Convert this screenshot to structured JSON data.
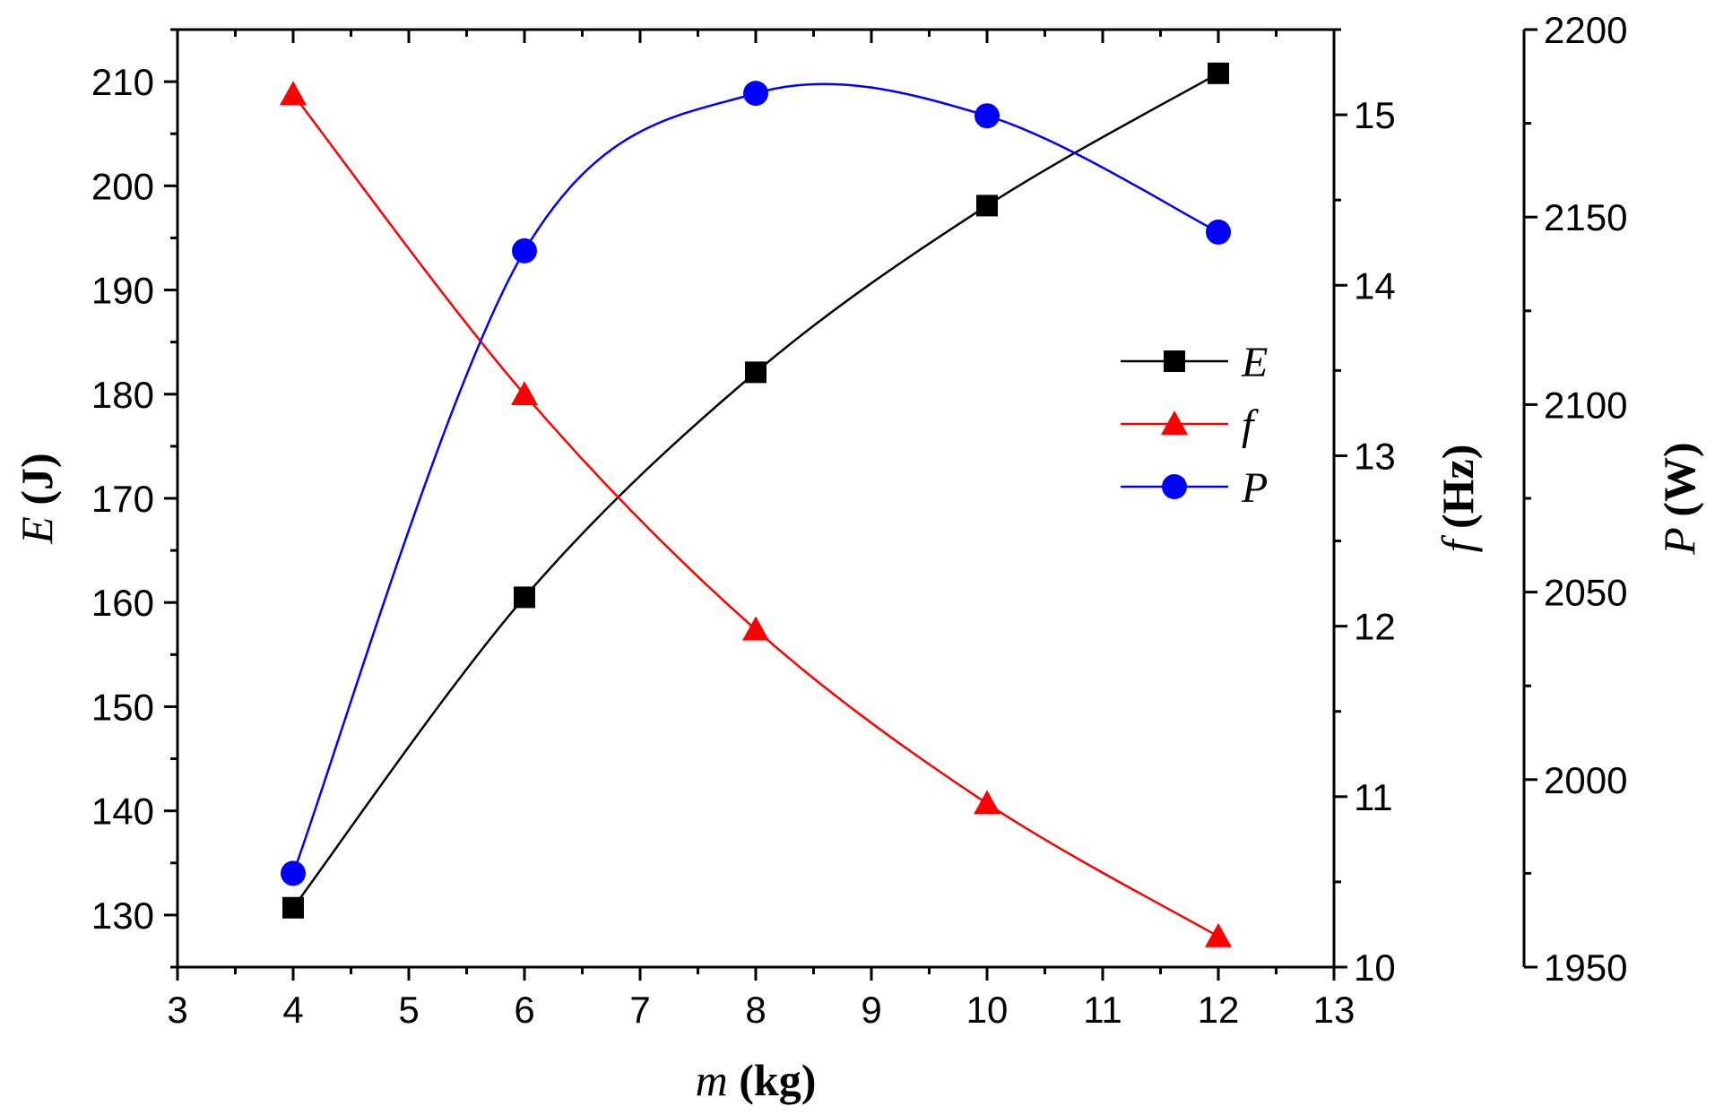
{
  "chart_data": {
    "type": "line",
    "xlabel": {
      "var": "m",
      "unit": "(kg)"
    },
    "xlim": [
      3,
      13
    ],
    "x_ticks": [
      "3",
      "4",
      "5",
      "6",
      "7",
      "8",
      "9",
      "10",
      "11",
      "12",
      "13"
    ],
    "x": [
      4,
      6,
      8,
      10,
      12
    ],
    "smooth": true,
    "grid": false,
    "legend_position": "center-right",
    "axes": {
      "E": {
        "label": {
          "var": "E",
          "unit": "(J)"
        },
        "side": "left",
        "lim": [
          125,
          215
        ],
        "ticks": [
          130,
          140,
          150,
          160,
          170,
          180,
          190,
          200,
          210
        ],
        "tick_labels": [
          "130",
          "140",
          "150",
          "160",
          "170",
          "180",
          "190",
          "200",
          "210"
        ]
      },
      "f": {
        "label": {
          "var": "f",
          "unit": "(Hz)"
        },
        "side": "right",
        "lim": [
          10,
          15.5
        ],
        "ticks": [
          10,
          11,
          12,
          13,
          14,
          15
        ],
        "tick_labels": [
          "10",
          "11",
          "12",
          "13",
          "14",
          "15"
        ]
      },
      "P": {
        "label": {
          "var": "P",
          "unit": "(W)"
        },
        "side": "right-offset",
        "lim": [
          1950,
          2200
        ],
        "ticks": [
          1950,
          2000,
          2050,
          2100,
          2150,
          2200
        ],
        "tick_labels": [
          "1950",
          "2000",
          "2050",
          "2100",
          "2150",
          "2200"
        ]
      }
    },
    "series": [
      {
        "name": "E",
        "axis": "E",
        "color": "#000000",
        "marker": "square",
        "values": [
          130.7,
          160.5,
          182.1,
          198.1,
          210.8
        ]
      },
      {
        "name": "f",
        "axis": "f",
        "color": "#ff0000",
        "marker": "triangle",
        "values": [
          15.12,
          13.36,
          11.98,
          10.96,
          10.18
        ]
      },
      {
        "name": "P",
        "axis": "P",
        "color": "#0000ff",
        "marker": "circle",
        "values": [
          1975,
          2141,
          2183,
          2177,
          2146
        ]
      }
    ]
  }
}
